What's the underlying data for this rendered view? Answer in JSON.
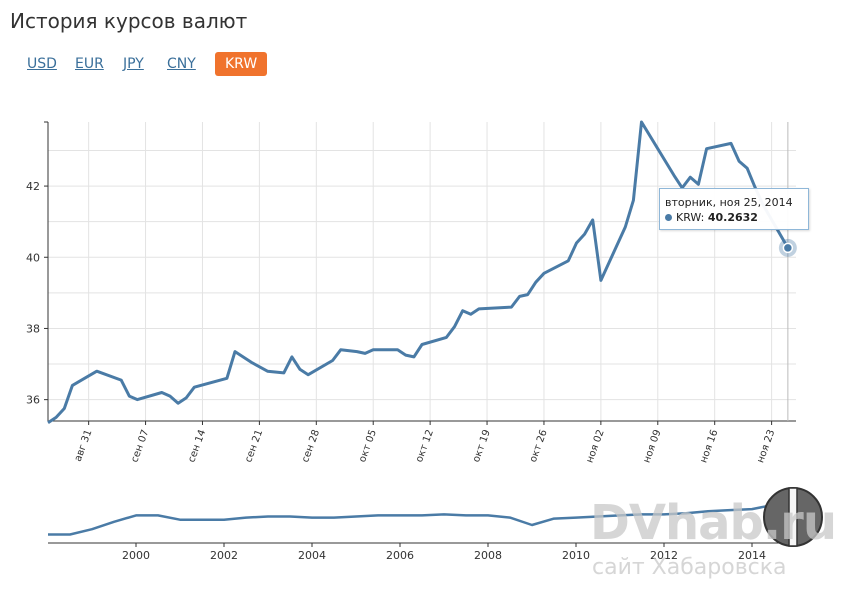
{
  "page": {
    "title": "История курсов валют"
  },
  "tabs": [
    {
      "label": "USD",
      "active": false
    },
    {
      "label": "EUR",
      "active": false
    },
    {
      "label": "JPY",
      "active": false
    },
    {
      "label": "CNY",
      "active": false
    },
    {
      "label": "KRW",
      "active": true
    }
  ],
  "colors": {
    "line": "#4a7ba6",
    "accent": "#f0732d",
    "grid": "#e3e3e3"
  },
  "tooltip": {
    "date": "вторник, ноя 25, 2014",
    "series": "KRW:",
    "value": "40.2632"
  },
  "watermark": {
    "brand": "DVhab.ru",
    "subtitle": "сайт Хабаровска"
  },
  "chart_data": [
    {
      "type": "line",
      "series": [
        {
          "name": "KRW",
          "values": [
            35.35,
            35.5,
            35.75,
            36.4,
            36.8,
            36.55,
            36.1,
            36.0,
            36.2,
            36.1,
            35.9,
            36.05,
            36.35,
            36.6,
            37.35,
            37.05,
            36.8,
            36.75,
            37.2,
            36.85,
            36.7,
            37.1,
            37.4,
            37.35,
            37.3,
            37.4,
            37.4,
            37.25,
            37.2,
            37.55,
            37.75,
            38.05,
            38.5,
            38.4,
            38.55,
            38.6,
            38.9,
            38.95,
            39.3,
            39.55,
            39.9,
            40.4,
            40.65,
            41.05,
            39.35,
            40.85,
            41.6,
            43.8,
            42.3,
            41.95,
            42.25,
            42.05,
            43.05,
            43.2,
            42.7,
            42.5,
            41.95,
            41.45,
            40.2632
          ]
        }
      ],
      "x": [
        "2014-08-26",
        "2014-08-27",
        "2014-08-28",
        "2014-08-29",
        "2014-09-01",
        "2014-09-04",
        "2014-09-05",
        "2014-09-06",
        "2014-09-09",
        "2014-09-10",
        "2014-09-11",
        "2014-09-12",
        "2014-09-13",
        "2014-09-17",
        "2014-09-18",
        "2014-09-20",
        "2014-09-22",
        "2014-09-24",
        "2014-09-25",
        "2014-09-26",
        "2014-09-27",
        "2014-09-30",
        "2014-10-01",
        "2014-10-03",
        "2014-10-04",
        "2014-10-05",
        "2014-10-08",
        "2014-10-09",
        "2014-10-10",
        "2014-10-11",
        "2014-10-14",
        "2014-10-15",
        "2014-10-16",
        "2014-10-17",
        "2014-10-18",
        "2014-10-22",
        "2014-10-23",
        "2014-10-24",
        "2014-10-25",
        "2014-10-26",
        "2014-10-29",
        "2014-10-30",
        "2014-10-31",
        "2014-11-01",
        "2014-11-02",
        "2014-11-05",
        "2014-11-06",
        "2014-11-07",
        "2014-11-11",
        "2014-11-12",
        "2014-11-13",
        "2014-11-14",
        "2014-11-15",
        "2014-11-18",
        "2014-11-19",
        "2014-11-20",
        "2014-11-21",
        "2014-11-22",
        "2014-11-25"
      ],
      "xticks": [
        "авг 31",
        "сен 07",
        "сен 14",
        "сен 21",
        "сен 28",
        "окт 05",
        "окт 12",
        "окт 19",
        "окт 26",
        "ноя 02",
        "ноя 09",
        "ноя 16",
        "ноя 23"
      ],
      "xtick_dates": [
        "2014-08-31",
        "2014-09-07",
        "2014-09-14",
        "2014-09-21",
        "2014-09-28",
        "2014-10-05",
        "2014-10-12",
        "2014-10-19",
        "2014-10-26",
        "2014-11-02",
        "2014-11-09",
        "2014-11-16",
        "2014-11-23"
      ],
      "xlim": [
        "2014-08-26",
        "2014-11-26"
      ],
      "yticks": [
        36,
        38,
        40,
        42
      ],
      "ylim": [
        35.4,
        43.8
      ],
      "grid": true
    },
    {
      "type": "area",
      "series": [
        {
          "name": "KRW",
          "values": [
            [
              1998.0,
              8
            ],
            [
              1998.5,
              8
            ],
            [
              1999.0,
              13
            ],
            [
              1999.5,
              20
            ],
            [
              2000.0,
              26
            ],
            [
              2000.5,
              26
            ],
            [
              2001.0,
              22
            ],
            [
              2001.5,
              22
            ],
            [
              2002.0,
              22
            ],
            [
              2002.5,
              24
            ],
            [
              2003.0,
              25
            ],
            [
              2003.5,
              25
            ],
            [
              2004.0,
              24
            ],
            [
              2004.5,
              24
            ],
            [
              2005.0,
              25
            ],
            [
              2005.5,
              26
            ],
            [
              2006.0,
              26
            ],
            [
              2006.5,
              26
            ],
            [
              2007.0,
              27
            ],
            [
              2007.5,
              26
            ],
            [
              2008.0,
              26
            ],
            [
              2008.5,
              24
            ],
            [
              2009.0,
              17
            ],
            [
              2009.5,
              23
            ],
            [
              2010.0,
              24
            ],
            [
              2010.5,
              25
            ],
            [
              2011.0,
              26
            ],
            [
              2011.5,
              27
            ],
            [
              2012.0,
              27
            ],
            [
              2012.5,
              28
            ],
            [
              2013.0,
              30
            ],
            [
              2013.5,
              31
            ],
            [
              2014.0,
              32
            ],
            [
              2014.5,
              36
            ],
            [
              2014.9,
              40
            ]
          ]
        }
      ],
      "xticks": [
        "2000",
        "2002",
        "2004",
        "2006",
        "2008",
        "2010",
        "2012",
        "2014"
      ],
      "xlim": [
        1998.0,
        2015.0
      ],
      "ylim": [
        0,
        50
      ]
    }
  ]
}
